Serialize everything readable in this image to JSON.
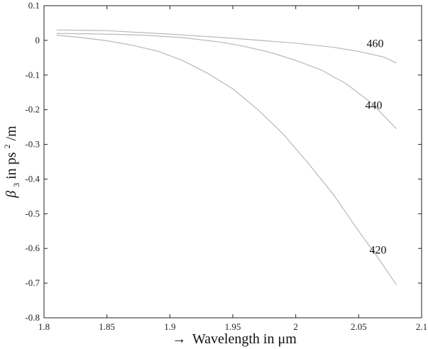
{
  "chart_data": {
    "type": "line",
    "title": "",
    "xlabel_arrow": "→",
    "xlabel": "Wavelength in μm",
    "ylabel_symbol": "β",
    "ylabel_subscript": "3",
    "ylabel_prefix": " in ps",
    "ylabel_superscript": "2",
    "ylabel_suffix": "/m",
    "xlim": [
      1.8,
      2.1
    ],
    "ylim": [
      -0.8,
      0.1
    ],
    "x_ticks": [
      1.8,
      1.85,
      1.9,
      1.95,
      2.0,
      2.05,
      2.1
    ],
    "x_tick_labels": [
      "1.8",
      "1.85",
      "1.9",
      "1.95",
      "2",
      "2.05",
      "2.1"
    ],
    "y_ticks": [
      0.1,
      0,
      -0.1,
      -0.2,
      -0.3,
      -0.4,
      -0.5,
      -0.6,
      -0.7,
      -0.8
    ],
    "y_tick_labels": [
      "0.1",
      "0",
      "-0.1",
      "-0.2",
      "-0.3",
      "-0.4",
      "-0.5",
      "-0.6",
      "-0.7",
      "-0.8"
    ],
    "grid": false,
    "line_color": "#b8b8b8",
    "series": [
      {
        "label": "420",
        "x": [
          1.81,
          1.83,
          1.85,
          1.87,
          1.89,
          1.91,
          1.93,
          1.95,
          1.97,
          1.99,
          2.01,
          2.03,
          2.05,
          2.065,
          2.08
        ],
        "y": [
          0.015,
          0.008,
          -0.001,
          -0.014,
          -0.031,
          -0.058,
          -0.095,
          -0.14,
          -0.2,
          -0.27,
          -0.355,
          -0.445,
          -0.55,
          -0.625,
          -0.705
        ]
      },
      {
        "label": "440",
        "x": [
          1.81,
          1.85,
          1.88,
          1.91,
          1.94,
          1.96,
          1.98,
          2.0,
          2.02,
          2.04,
          2.06,
          2.08
        ],
        "y": [
          0.02,
          0.018,
          0.015,
          0.008,
          -0.005,
          -0.018,
          -0.035,
          -0.058,
          -0.085,
          -0.125,
          -0.18,
          -0.255
        ]
      },
      {
        "label": "460",
        "x": [
          1.81,
          1.85,
          1.9,
          1.95,
          2.0,
          2.03,
          2.05,
          2.07,
          2.08
        ],
        "y": [
          0.03,
          0.028,
          0.018,
          0.006,
          -0.008,
          -0.02,
          -0.032,
          -0.048,
          -0.065
        ]
      }
    ]
  }
}
